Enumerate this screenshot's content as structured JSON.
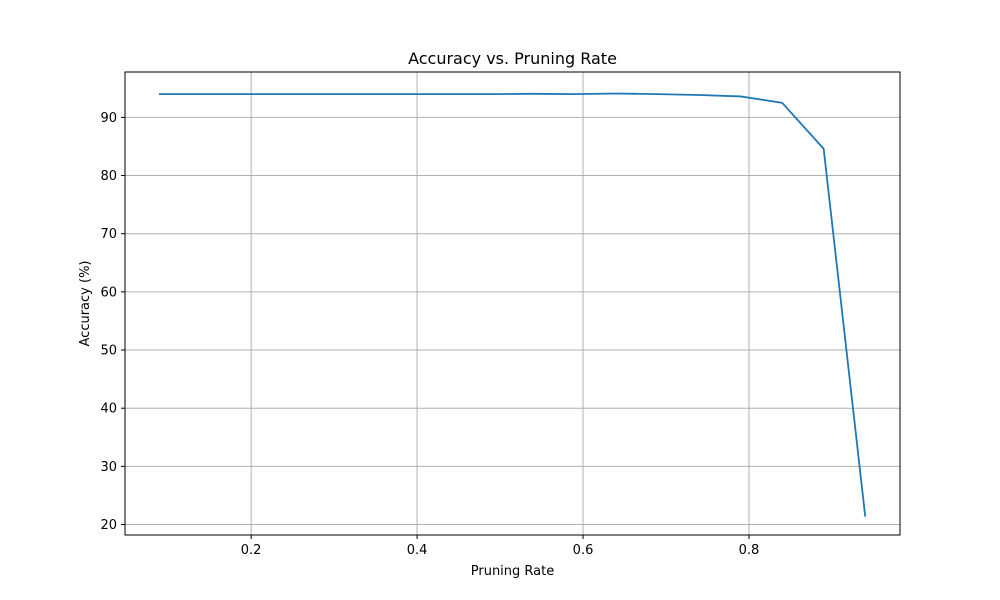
{
  "chart_data": {
    "type": "line",
    "title": "Accuracy vs. Pruning Rate",
    "xlabel": "Pruning Rate",
    "ylabel": "Accuracy (%)",
    "xlim": [
      0.048,
      0.982
    ],
    "ylim": [
      18.2,
      97.8
    ],
    "xticks": [
      0.2,
      0.4,
      0.6,
      0.8
    ],
    "xtick_labels": [
      "0.2",
      "0.4",
      "0.6",
      "0.8"
    ],
    "yticks": [
      20,
      30,
      40,
      50,
      60,
      70,
      80,
      90
    ],
    "ytick_labels": [
      "20",
      "30",
      "40",
      "50",
      "60",
      "70",
      "80",
      "90"
    ],
    "grid": true,
    "series": [
      {
        "color": "#1f77b4",
        "x": [
          0.09,
          0.19,
          0.29,
          0.39,
          0.49,
          0.54,
          0.59,
          0.64,
          0.69,
          0.74,
          0.79,
          0.84,
          0.89,
          0.94
        ],
        "y": [
          94.0,
          94.0,
          94.0,
          94.0,
          94.0,
          94.05,
          94.0,
          94.1,
          94.0,
          93.85,
          93.6,
          92.5,
          84.6,
          21.5
        ]
      }
    ]
  }
}
